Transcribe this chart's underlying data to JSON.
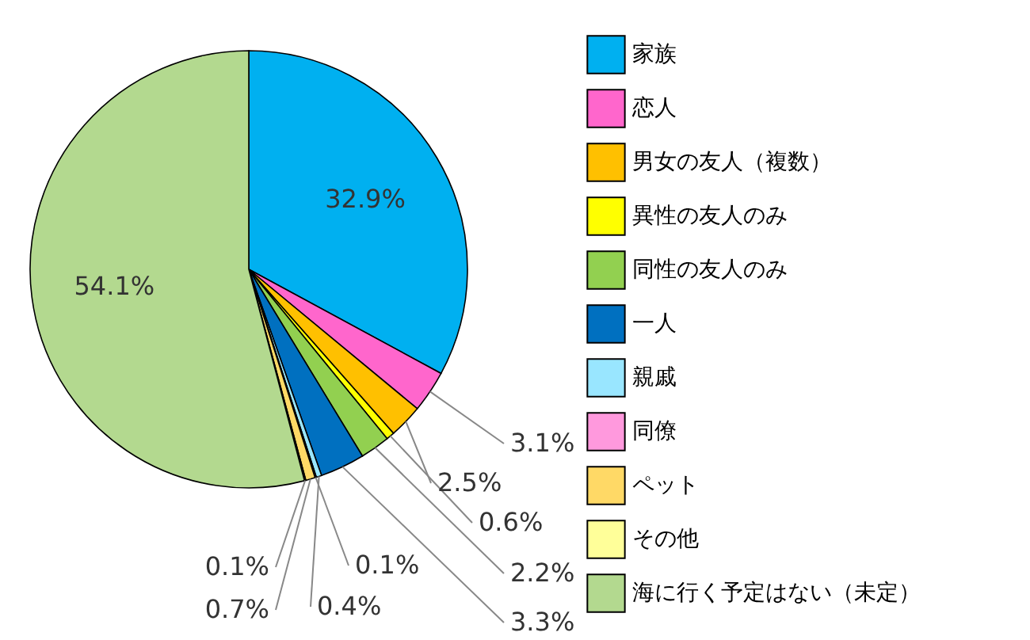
{
  "chart_data": {
    "type": "pie",
    "categories": [
      "家族",
      "恋人",
      "男女の友人（複数）",
      "異性の友人のみ",
      "同性の友人のみ",
      "一人",
      "親戚",
      "同僚",
      "ペット",
      "その他",
      "海に行く予定はない（未定）"
    ],
    "values": [
      32.9,
      3.1,
      2.5,
      0.6,
      2.2,
      3.3,
      0.4,
      0.1,
      0.7,
      0.1,
      54.1
    ],
    "colors": [
      "#00b0f0",
      "#ff66cc",
      "#ffc000",
      "#ffff00",
      "#92d050",
      "#0070c0",
      "#99e6ff",
      "#ff99dd",
      "#ffd966",
      "#ffff99",
      "#b3d98f"
    ],
    "value_labels": [
      "32.9%",
      "3.1%",
      "2.5%",
      "0.6%",
      "2.2%",
      "3.3%",
      "0.4%",
      "0.1%",
      "0.7%",
      "0.1%",
      "54.1%"
    ],
    "legend": "right"
  }
}
